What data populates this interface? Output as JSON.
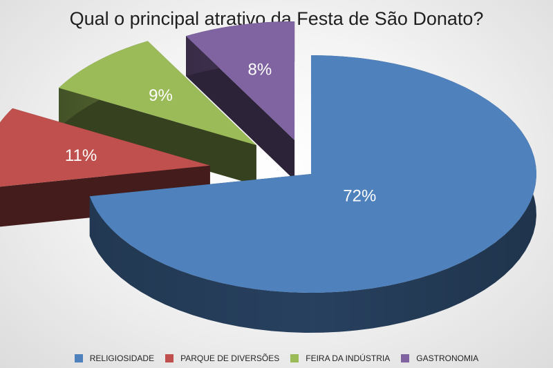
{
  "chart_data": {
    "type": "pie",
    "title": "Qual o principal atrativo da Festa de São Donato?",
    "slices": [
      {
        "label": "RELIGIOSIDADE",
        "value": 72,
        "value_label": "72%",
        "color": "#4f81bd"
      },
      {
        "label": "PARQUE DE DIVERSÕES",
        "value": 11,
        "value_label": "11%",
        "color": "#c0504d"
      },
      {
        "label": "FEIRA DA INDÚSTRIA",
        "value": 9,
        "value_label": "9%",
        "color": "#9bbb59"
      },
      {
        "label": "GASTRONOMIA",
        "value": 8,
        "value_label": "8%",
        "color": "#8064a2"
      }
    ],
    "legend_position": "bottom",
    "style": "3D exploded pie"
  }
}
